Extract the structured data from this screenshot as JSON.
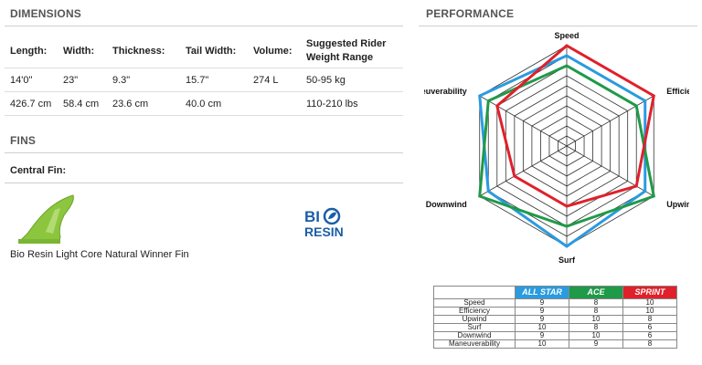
{
  "dimensions": {
    "heading": "DIMENSIONS",
    "headers": [
      "Length:",
      "Width:",
      "Thickness:",
      "Tail Width:",
      "Volume:",
      "Suggested Rider Weight Range"
    ],
    "rows": [
      [
        "14'0\"",
        "23\"",
        "9.3\"",
        "15.7\"",
        "274 L",
        "50-95 kg"
      ],
      [
        "426.7 cm",
        "58.4 cm",
        "23.6 cm",
        "40.0 cm",
        "",
        "110-210 lbs"
      ]
    ]
  },
  "fins": {
    "heading": "FINS",
    "central_label": "Central Fin:",
    "fin_name": "Bio Resin Light Core Natural Winner Fin",
    "logo_text": "BIO RESIN"
  },
  "performance": {
    "heading": "PERFORMANCE",
    "axes": [
      "Speed",
      "Efficiency",
      "Upwind",
      "Surf",
      "Downwind",
      "Maneuverability"
    ],
    "series": [
      {
        "name": "ALL STAR",
        "color": "#2a9be0",
        "values": [
          9,
          9,
          9,
          10,
          9,
          10
        ]
      },
      {
        "name": "ACE",
        "color": "#1f9a48",
        "values": [
          8,
          8,
          10,
          8,
          10,
          9
        ]
      },
      {
        "name": "SPRINT",
        "color": "#e0202a",
        "values": [
          10,
          10,
          8,
          6,
          6,
          8
        ]
      }
    ],
    "max": 10,
    "levels": 10
  }
}
